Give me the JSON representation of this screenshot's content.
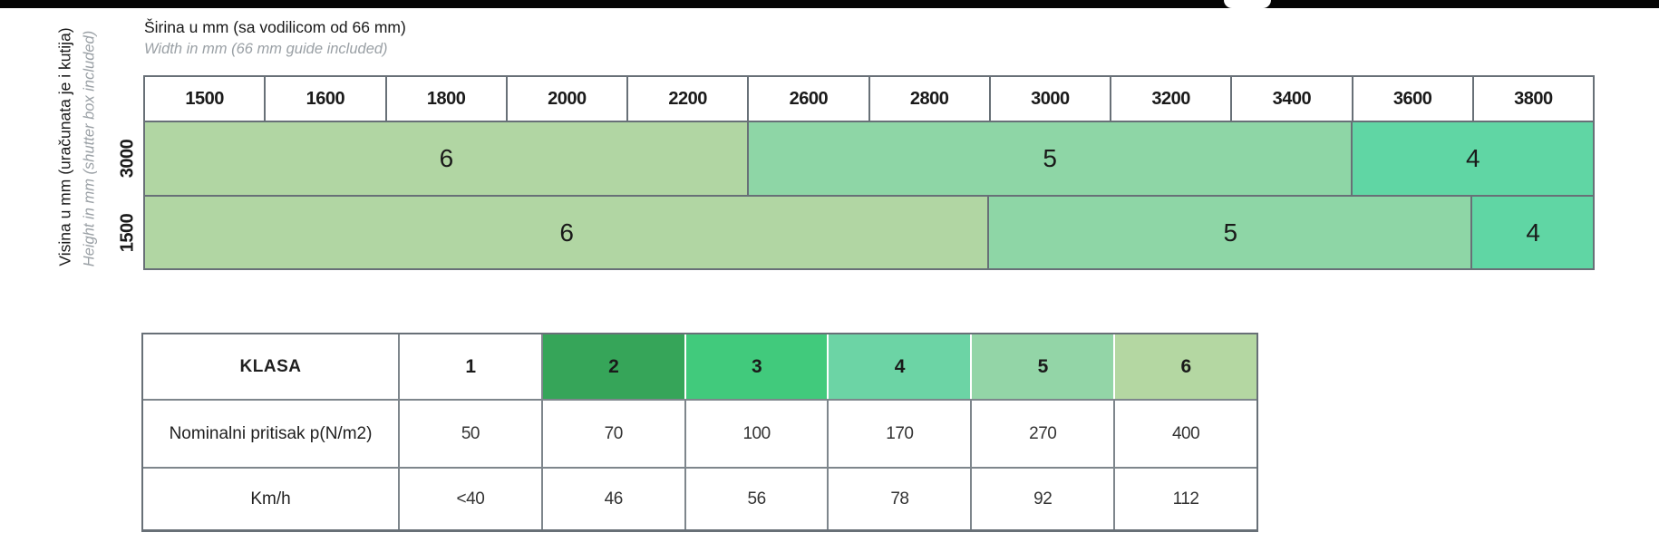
{
  "chart_data": [
    {
      "type": "heatmap",
      "title": "Širina u mm (sa vodilicom od 66 mm)",
      "subtitle": "Width in mm (66 mm guide included)",
      "y_title": "Visina u mm (uračunata je i kutija)",
      "y_subtitle": "Height in mm (shutter box included)",
      "columns": [
        "1500",
        "1600",
        "1800",
        "2000",
        "2200",
        "2600",
        "2800",
        "3000",
        "3200",
        "3400",
        "3600",
        "3800"
      ],
      "rows": [
        {
          "height": "3000",
          "bands": [
            {
              "klasa": "6",
              "cols": 5,
              "color": "#b1d6a3"
            },
            {
              "klasa": "5",
              "cols": 5,
              "color": "#8ed6a6"
            },
            {
              "klasa": "4",
              "cols": 2,
              "color": "#60d6a4"
            }
          ]
        },
        {
          "height": "1500",
          "bands": [
            {
              "klasa": "6",
              "cols": 7,
              "color": "#b1d6a3"
            },
            {
              "klasa": "5",
              "cols": 4,
              "color": "#8ed6a6"
            },
            {
              "klasa": "4",
              "cols": 1,
              "color": "#60d6a4"
            }
          ]
        }
      ]
    },
    {
      "type": "table",
      "header_label": "KLASA",
      "classes": [
        {
          "label": "1",
          "color": "#ffffff"
        },
        {
          "label": "2",
          "color": "#36a559"
        },
        {
          "label": "3",
          "color": "#41ca7c"
        },
        {
          "label": "4",
          "color": "#6cd4a5"
        },
        {
          "label": "5",
          "color": "#93d5a7"
        },
        {
          "label": "6",
          "color": "#b4d7a2"
        }
      ],
      "rows": [
        {
          "label": "Nominalni pritisak p(N/m2)",
          "values": [
            "50",
            "70",
            "100",
            "170",
            "270",
            "400"
          ]
        },
        {
          "label": "Km/h",
          "values": [
            "<40",
            "46",
            "56",
            "78",
            "92",
            "112"
          ]
        }
      ]
    }
  ],
  "colors": {
    "border": "#687077",
    "legend_border": "#7e868c",
    "top_bar": "#050505",
    "muted_text": "#9aa0a5"
  }
}
